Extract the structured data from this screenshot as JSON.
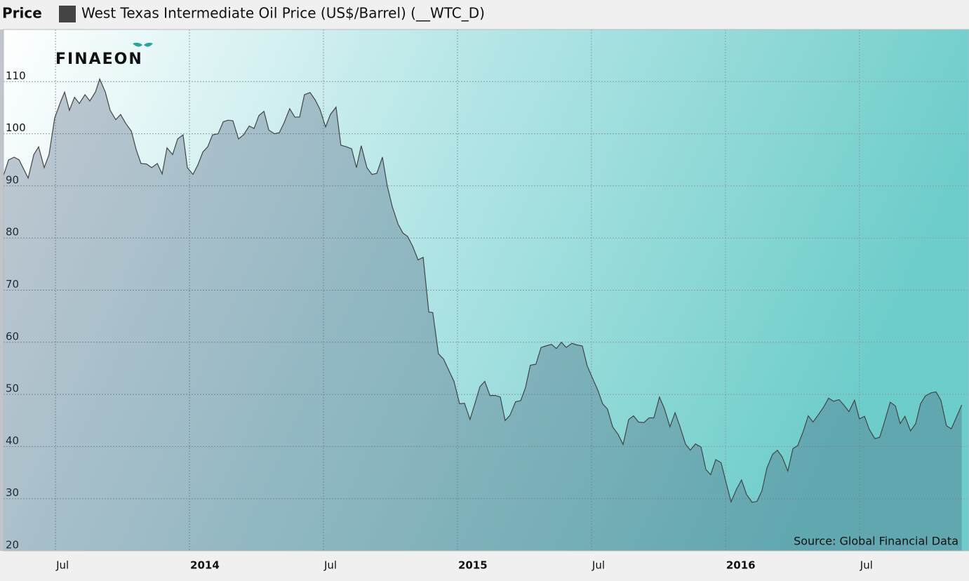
{
  "chart_data": {
    "type": "area",
    "ylabel": "Price",
    "logo": "FINAEON",
    "source": "Source: Global Financial Data",
    "grid": true,
    "xlim": [
      2013.306,
      2016.909
    ],
    "xticks": [
      {
        "value": 2013.5,
        "label": "Jul"
      },
      2014,
      {
        "value": 2014.5,
        "label": "Jul"
      },
      2015,
      {
        "value": 2015.5,
        "label": "Jul"
      },
      2016,
      {
        "value": 2016.5,
        "label": "Jul"
      }
    ],
    "ylim": [
      20,
      120
    ],
    "yticks": [
      20,
      30,
      40,
      50,
      60,
      70,
      80,
      90,
      100,
      110
    ],
    "x": [
      2013.306,
      2013.325,
      2013.346,
      2013.364,
      2013.398,
      2013.419,
      2013.437,
      2013.458,
      2013.476,
      2013.497,
      2013.518,
      2013.534,
      2013.552,
      2013.571,
      2013.589,
      2013.61,
      2013.628,
      2013.649,
      2013.665,
      2013.686,
      2013.704,
      2013.725,
      2013.743,
      2013.762,
      2013.783,
      2013.801,
      2013.819,
      2013.84,
      2013.859,
      2013.88,
      2013.898,
      2013.916,
      2013.937,
      2013.956,
      2013.976,
      2013.992,
      2014.013,
      2014.031,
      2014.05,
      2014.068,
      2014.086,
      2014.107,
      2014.126,
      2014.144,
      2014.162,
      2014.183,
      2014.202,
      2014.223,
      2014.241,
      2014.259,
      2014.278,
      2014.296,
      2014.317,
      2014.335,
      2014.353,
      2014.374,
      2014.393,
      2014.411,
      2014.429,
      2014.45,
      2014.469,
      2014.487,
      2014.508,
      2014.526,
      2014.547,
      2014.565,
      2014.586,
      2014.605,
      2014.623,
      2014.641,
      2014.662,
      2014.681,
      2014.699,
      2014.72,
      2014.738,
      2014.757,
      2014.778,
      2014.796,
      2014.814,
      2014.833,
      2014.853,
      2014.872,
      2014.893,
      2014.908,
      2014.929,
      2014.948,
      2014.969,
      2014.987,
      2015.008,
      2015.026,
      2015.047,
      2015.066,
      2015.084,
      2015.102,
      2015.121,
      2015.141,
      2015.16,
      2015.178,
      2015.196,
      2015.217,
      2015.236,
      2015.254,
      2015.272,
      2015.293,
      2015.312,
      2015.33,
      2015.351,
      2015.369,
      2015.388,
      2015.406,
      2015.427,
      2015.445,
      2015.466,
      2015.484,
      2015.505,
      2015.524,
      2015.542,
      2015.56,
      2015.579,
      2015.6,
      2015.618,
      2015.639,
      2015.657,
      2015.676,
      2015.696,
      2015.715,
      2015.733,
      2015.754,
      2015.772,
      2015.793,
      2015.812,
      2015.83,
      2015.851,
      2015.869,
      2015.888,
      2015.909,
      2015.927,
      2015.945,
      2015.964,
      2015.984,
      2016.003,
      2016.021,
      2016.042,
      2016.06,
      2016.079,
      2016.1,
      2016.118,
      2016.136,
      2016.155,
      2016.176,
      2016.194,
      2016.212,
      2016.233,
      2016.252,
      2016.27,
      2016.291,
      2016.309,
      2016.327,
      2016.348,
      2016.367,
      2016.385,
      2016.403,
      2016.424,
      2016.443,
      2016.461,
      2016.482,
      2016.5,
      2016.519,
      2016.537,
      2016.558,
      2016.576,
      2016.594,
      2016.615,
      2016.634,
      2016.652,
      2016.67,
      2016.691,
      2016.71,
      2016.728,
      2016.746,
      2016.767,
      2016.786,
      2016.804,
      2016.825,
      2016.843,
      2016.861,
      2016.882
    ],
    "series": [
      {
        "name": "West Texas Intermediate Oil Price (US$/Barrel) (__WTC_D)",
        "color": "#444444",
        "values": [
          92,
          95,
          95.5,
          95,
          91.5,
          96,
          97.5,
          93.5,
          96,
          103,
          106,
          108,
          104.5,
          107,
          105.8,
          107.5,
          106.3,
          108,
          110.5,
          108,
          104.5,
          102.7,
          103.7,
          102,
          100.5,
          97,
          94.3,
          94.2,
          93.5,
          94.3,
          92.3,
          97.3,
          96,
          99,
          99.8,
          93.5,
          92.2,
          94,
          96.5,
          97.5,
          99.8,
          100,
          102.3,
          102.6,
          102.5,
          99,
          99.8,
          101.5,
          101,
          103.5,
          104.3,
          100.7,
          100,
          100.2,
          102.1,
          104.8,
          103.2,
          103.2,
          107.5,
          107.9,
          106.5,
          104.7,
          101.3,
          103.7,
          105.1,
          97.8,
          97.5,
          97.1,
          93.5,
          97.7,
          93.5,
          92.2,
          92.4,
          95.5,
          90,
          86,
          82.7,
          81,
          80.3,
          78.4,
          75.8,
          76.3,
          65.8,
          65.7,
          57.8,
          56.8,
          54.5,
          52.5,
          48.2,
          48.3,
          45.2,
          48.4,
          51.5,
          52.5,
          49.8,
          49.8,
          49.5,
          45,
          46,
          48.6,
          48.8,
          51.3,
          55.6,
          55.8,
          59,
          59.3,
          59.6,
          58.8,
          60,
          59,
          59.8,
          59.5,
          59.3,
          55.5,
          53,
          50.8,
          48.2,
          47.2,
          43.8,
          42.3,
          40.4,
          45.2,
          45.9,
          44.7,
          44.6,
          45.5,
          45.5,
          49.5,
          47.3,
          43.8,
          46.5,
          43.9,
          40.5,
          39.3,
          40.5,
          39.9,
          35.6,
          34.6,
          37.5,
          36.9,
          33,
          29.4,
          31.9,
          33.6,
          30.8,
          29.3,
          29.5,
          31.5,
          35.9,
          38.5,
          39.3,
          38,
          35.3,
          39.6,
          40.2,
          43,
          45.9,
          44.7,
          46.2,
          47.6,
          49.3,
          48.7,
          49,
          47.9,
          46.7,
          48.9,
          45.3,
          45.8,
          43.3,
          41.5,
          41.8,
          44.8,
          48.5,
          47.8,
          44.4,
          45.8,
          43,
          44.4,
          48.2,
          49.7,
          50.3,
          50.5,
          48.9,
          44,
          43.4,
          45.5,
          48
        ]
      }
    ]
  }
}
